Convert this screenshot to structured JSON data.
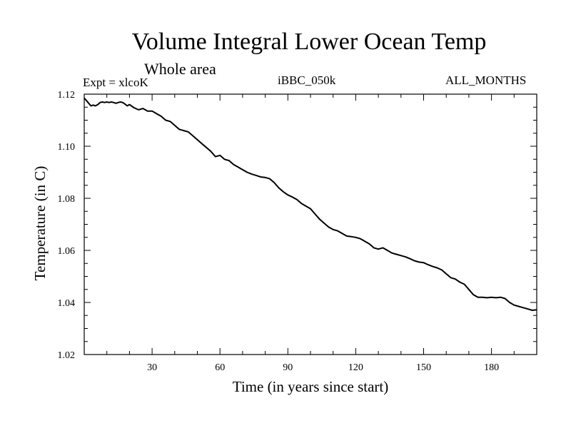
{
  "chart_data": {
    "type": "line",
    "title": "Volume Integral Lower Ocean Temp",
    "subtitle": "Whole area",
    "left_label": "Expt = xlcoK",
    "center_label": "iBBC_050k",
    "right_label": "ALL_MONTHS",
    "xlabel": "Time (in years since start)",
    "ylabel": "Temperature (in C)",
    "xlim": [
      0,
      200
    ],
    "ylim": [
      1.02,
      1.12
    ],
    "xticks": [
      30,
      60,
      90,
      120,
      150,
      180
    ],
    "xtick_labels": [
      "30",
      "60",
      "90",
      "120",
      "150",
      "180"
    ],
    "yticks": [
      1.02,
      1.04,
      1.06,
      1.08,
      1.1,
      1.12
    ],
    "ytick_labels": [
      "1.02",
      "1.04",
      "1.06",
      "1.08",
      "1.10",
      "1.12"
    ],
    "grid": false,
    "series": [
      {
        "name": "Volume Integral Lower Ocean Temp",
        "x": [
          0,
          1,
          2,
          3,
          4,
          5,
          6,
          7,
          8,
          9,
          10,
          11,
          12,
          13,
          14,
          15,
          16,
          17,
          18,
          19,
          20,
          22,
          24,
          26,
          28,
          30,
          32,
          34,
          36,
          38,
          40,
          42,
          44,
          46,
          48,
          50,
          52,
          54,
          56,
          58,
          60,
          62,
          64,
          66,
          68,
          70,
          72,
          74,
          76,
          78,
          80,
          82,
          84,
          86,
          88,
          90,
          92,
          94,
          96,
          98,
          100,
          102,
          104,
          106,
          108,
          110,
          112,
          114,
          116,
          118,
          120,
          122,
          124,
          126,
          128,
          130,
          132,
          134,
          136,
          138,
          140,
          142,
          144,
          146,
          148,
          150,
          152,
          154,
          156,
          158,
          160,
          162,
          164,
          166,
          168,
          170,
          172,
          174,
          176,
          178,
          180,
          182,
          184,
          186,
          188,
          190,
          192,
          194,
          196,
          198,
          200
        ],
        "y": [
          1.1185,
          1.1175,
          1.1165,
          1.1155,
          1.1158,
          1.1155,
          1.116,
          1.1168,
          1.117,
          1.1168,
          1.117,
          1.1168,
          1.117,
          1.1168,
          1.1165,
          1.1168,
          1.117,
          1.1168,
          1.1162,
          1.1155,
          1.116,
          1.1148,
          1.114,
          1.1145,
          1.1135,
          1.1135,
          1.1125,
          1.1115,
          1.11,
          1.1095,
          1.108,
          1.1065,
          1.106,
          1.1055,
          1.104,
          1.1025,
          1.101,
          1.0995,
          1.098,
          1.096,
          1.0965,
          1.095,
          1.0945,
          1.093,
          1.092,
          1.091,
          1.09,
          1.0893,
          1.0888,
          1.0882,
          1.088,
          1.0875,
          1.086,
          1.084,
          1.0825,
          1.0813,
          1.0805,
          1.0795,
          1.078,
          1.077,
          1.076,
          1.074,
          1.072,
          1.0705,
          1.069,
          1.068,
          1.0675,
          1.0665,
          1.0655,
          1.0653,
          1.065,
          1.0645,
          1.0635,
          1.0625,
          1.061,
          1.0605,
          1.061,
          1.06,
          1.059,
          1.0585,
          1.058,
          1.0575,
          1.0568,
          1.056,
          1.0555,
          1.0553,
          1.0545,
          1.0538,
          1.0533,
          1.0525,
          1.051,
          1.0495,
          1.049,
          1.0478,
          1.047,
          1.045,
          1.043,
          1.042,
          1.042,
          1.0418,
          1.042,
          1.0418,
          1.042,
          1.0415,
          1.04,
          1.039,
          1.0385,
          1.038,
          1.0375,
          1.037,
          1.0372
        ]
      }
    ]
  }
}
